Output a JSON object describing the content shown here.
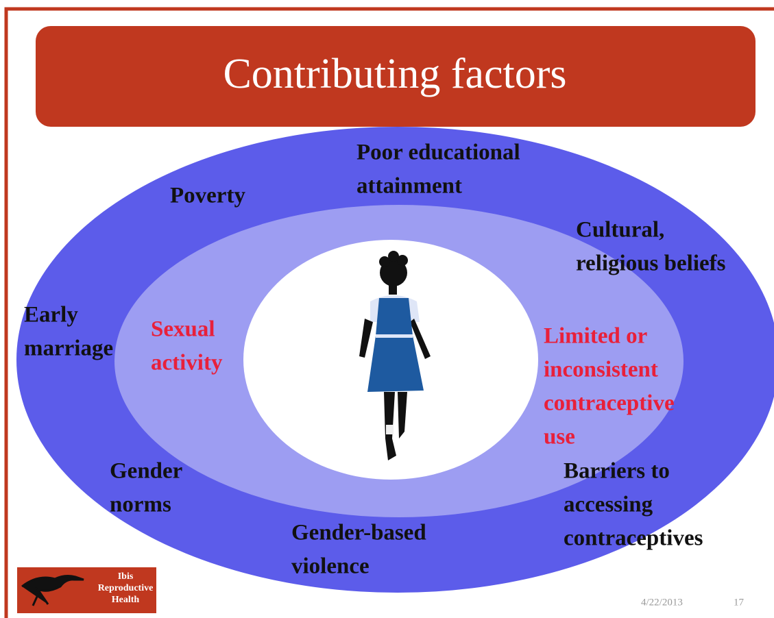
{
  "title": "Contributing factors",
  "outer_factors": [
    {
      "lines": [
        "Poor educational",
        "attainment"
      ]
    },
    {
      "lines": [
        "Poverty"
      ]
    },
    {
      "lines": [
        "Cultural,",
        "religious beliefs"
      ]
    },
    {
      "lines": [
        "Early",
        "marriage"
      ]
    },
    {
      "lines": [
        "Gender",
        "norms"
      ]
    },
    {
      "lines": [
        "Barriers to",
        "accessing",
        "contraceptives"
      ]
    },
    {
      "lines": [
        "Gender-based",
        "violence"
      ]
    }
  ],
  "inner_factors": [
    {
      "lines": [
        "Sexual",
        "activity"
      ]
    },
    {
      "lines": [
        "Limited or",
        "inconsistent",
        "contraceptive",
        "use"
      ]
    }
  ],
  "logo": {
    "lines": [
      "Ibis",
      "Reproductive",
      "Health"
    ]
  },
  "footer": {
    "date": "4/22/2013",
    "page": "17"
  }
}
